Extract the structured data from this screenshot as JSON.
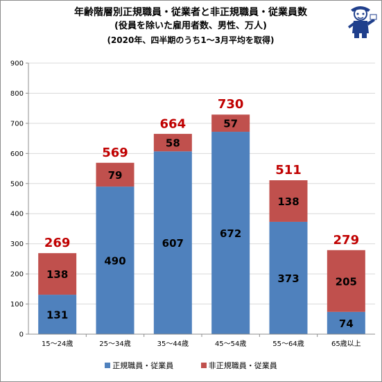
{
  "title": {
    "line1": "年齢階層別正規職員・従業者と非正規職員・従業員数",
    "line2": "(役員を除いた雇用者数、男性、万人)",
    "line3": "(2020年、四半期のうち1～3月平均を取得)"
  },
  "colors": {
    "regular": "#4f81bd",
    "nonregular": "#c0504d",
    "total_label": "#c00000",
    "grid": "#d9d9d9"
  },
  "chart_data": {
    "type": "bar",
    "stacked": true,
    "title": "年齢階層別正規職員・従業者と非正規職員・従業員数",
    "categories": [
      "15～24歳",
      "25～34歳",
      "35～44歳",
      "45～54歳",
      "55～64歳",
      "65歳以上"
    ],
    "series": [
      {
        "name": "正規職員・従業員",
        "values": [
          131,
          490,
          607,
          672,
          373,
          74
        ]
      },
      {
        "name": "非正規職員・従業員",
        "values": [
          138,
          79,
          58,
          57,
          138,
          205
        ]
      }
    ],
    "totals": [
      269,
      569,
      664,
      730,
      511,
      279
    ],
    "ylim": [
      0,
      900
    ],
    "yticks": [
      0,
      100,
      200,
      300,
      400,
      500,
      600,
      700,
      800,
      900
    ],
    "grid": true,
    "legend_position": "bottom"
  }
}
